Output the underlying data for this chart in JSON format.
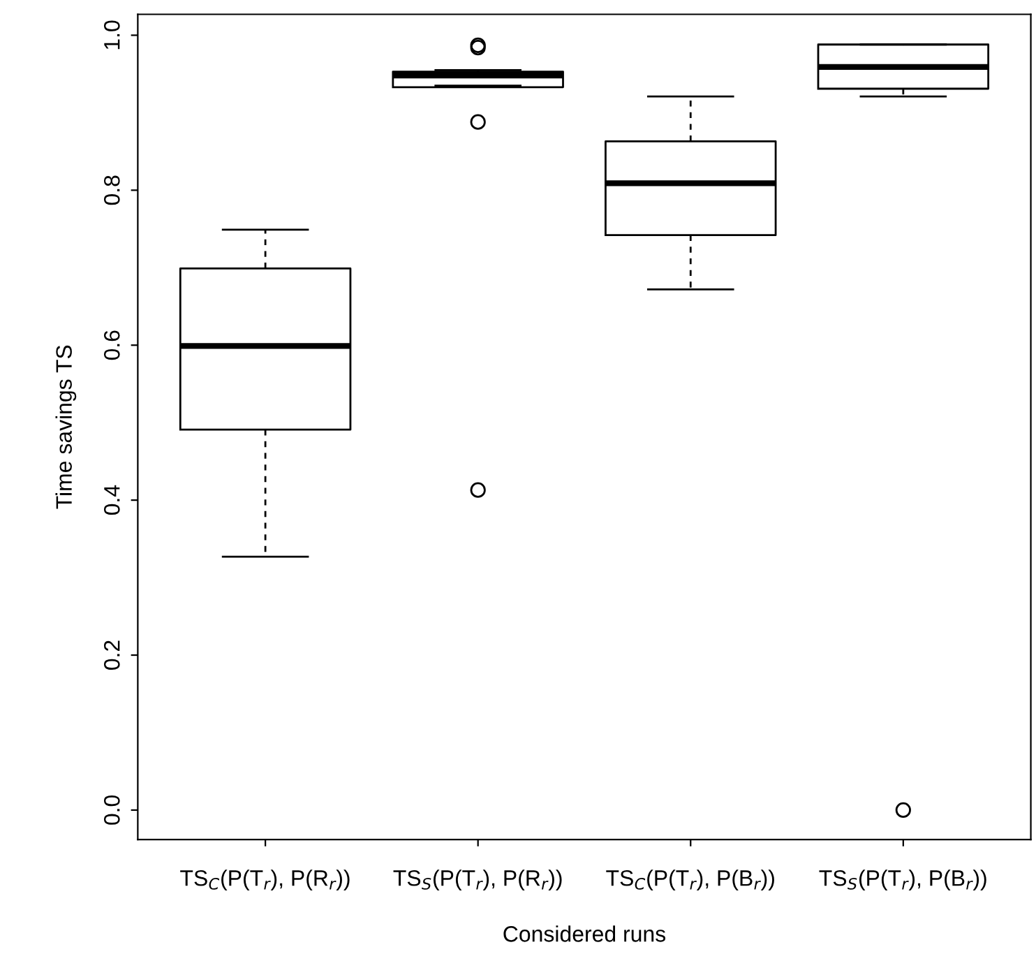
{
  "chart_data": {
    "type": "box",
    "xlabel": "Considered runs",
    "ylabel": "Time savings TS",
    "categories": [
      "TS$_{C}$(P(T$_{r}$), P(R$_{r}$))",
      "TS$_{S}$(P(T$_{r}$), P(R$_{r}$))",
      "TS$_{C}$(P(T$_{r}$), P(B$_{r}$))",
      "TS$_{S}$(P(T$_{r}$), P(B$_{r}$))"
    ],
    "boxes": [
      {
        "low": 0.327,
        "q1": 0.491,
        "median": 0.599,
        "q3": 0.699,
        "high": 0.749
      },
      {
        "low": 0.935,
        "q1": 0.933,
        "median": 0.948,
        "q3": 0.953,
        "high": 0.955,
        "outliers": [
          0.987,
          0.984,
          0.888,
          0.413
        ]
      },
      {
        "low": 0.672,
        "q1": 0.742,
        "median": 0.809,
        "q3": 0.863,
        "high": 0.921
      },
      {
        "low": 0.921,
        "q1": 0.931,
        "median": 0.959,
        "q3": 0.988,
        "high": 0.988,
        "outliers": [
          0.0
        ]
      }
    ],
    "ylim": [
      -0.038,
      1.027
    ],
    "yticks": [
      {
        "value": 0,
        "label": "0.0"
      },
      {
        "value": 0.2,
        "label": "0.2"
      },
      {
        "value": 0.4,
        "label": "0.4"
      },
      {
        "value": 0.6,
        "label": "0.6"
      },
      {
        "value": 0.8,
        "label": "0.8"
      },
      {
        "value": 1,
        "label": "1.0"
      }
    ],
    "grid": false,
    "color": "#000000"
  }
}
